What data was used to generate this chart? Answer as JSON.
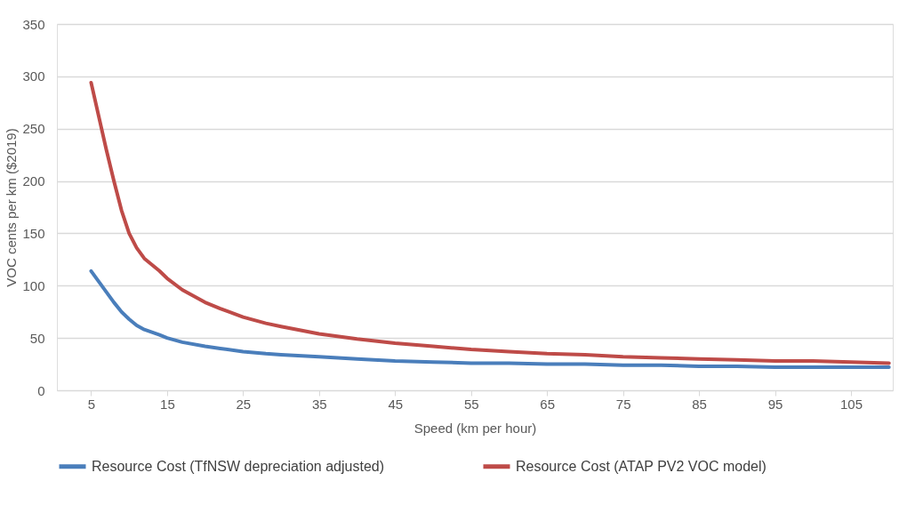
{
  "chart_data": {
    "type": "line",
    "xlabel": "Speed (km per hour)",
    "ylabel": "VOC cents per km ($2019)",
    "x": [
      5,
      6,
      7,
      8,
      9,
      10,
      11,
      12,
      14,
      15,
      17,
      20,
      22,
      25,
      28,
      30,
      35,
      40,
      45,
      50,
      55,
      60,
      65,
      70,
      75,
      80,
      85,
      90,
      95,
      100,
      105,
      110
    ],
    "series": [
      {
        "name": "Resource Cost (TfNSW depreciation adjusted)",
        "color": "#4a7ebb",
        "values": [
          114,
          104,
          94,
          84,
          75,
          68,
          62,
          58,
          53,
          50,
          46,
          42,
          40,
          37,
          35,
          34,
          32,
          30,
          28,
          27,
          26,
          26,
          25,
          25,
          24,
          24,
          23,
          23,
          22,
          22,
          22,
          22
        ]
      },
      {
        "name": "Resource Cost (ATAP PV2 VOC model)",
        "color": "#be4b48",
        "values": [
          294,
          262,
          230,
          200,
          172,
          150,
          136,
          126,
          114,
          107,
          96,
          84,
          78,
          70,
          64,
          61,
          54,
          49,
          45,
          42,
          39,
          37,
          35,
          34,
          32,
          31,
          30,
          29,
          28,
          28,
          27,
          26
        ]
      }
    ],
    "xlim": [
      0.5,
      110.5
    ],
    "xticks": [
      5,
      15,
      25,
      35,
      45,
      55,
      65,
      75,
      85,
      95,
      105
    ],
    "ylim": [
      0,
      350
    ],
    "yticks": [
      0,
      50,
      100,
      150,
      200,
      250,
      300,
      350
    ],
    "grid": "y",
    "legend": "bottom",
    "marker": "none",
    "line_style": "solid"
  }
}
